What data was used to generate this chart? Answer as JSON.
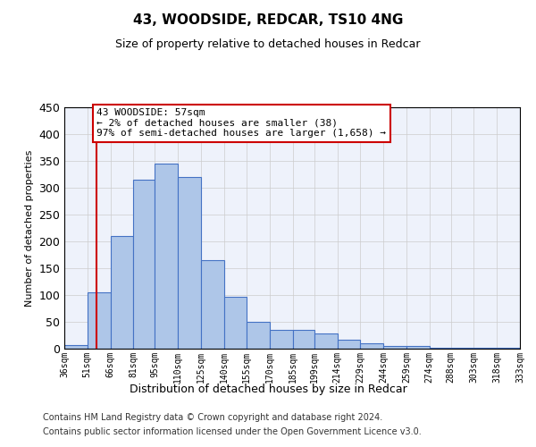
{
  "title": "43, WOODSIDE, REDCAR, TS10 4NG",
  "subtitle": "Size of property relative to detached houses in Redcar",
  "xlabel": "Distribution of detached houses by size in Redcar",
  "ylabel": "Number of detached properties",
  "footer_line1": "Contains HM Land Registry data © Crown copyright and database right 2024.",
  "footer_line2": "Contains public sector information licensed under the Open Government Licence v3.0.",
  "bar_left_edges": [
    36,
    51,
    66,
    81,
    95,
    110,
    125,
    140,
    155,
    170,
    185,
    199,
    214,
    229,
    244,
    259,
    274,
    288,
    303,
    318
  ],
  "bar_widths": [
    15,
    15,
    15,
    14,
    15,
    15,
    15,
    15,
    15,
    15,
    14,
    15,
    15,
    15,
    15,
    15,
    14,
    15,
    15,
    15
  ],
  "bar_heights": [
    7,
    105,
    210,
    315,
    345,
    320,
    165,
    97,
    50,
    35,
    35,
    28,
    17,
    10,
    5,
    5,
    2,
    2,
    1,
    1
  ],
  "bar_color": "#aec6e8",
  "bar_edge_color": "#4472c4",
  "grid_color": "#cccccc",
  "bg_color": "#eef2fb",
  "annotation_line1": "43 WOODSIDE: 57sqm",
  "annotation_line2": "← 2% of detached houses are smaller (38)",
  "annotation_line3": "97% of semi-detached houses are larger (1,658) →",
  "annotation_box_color": "#ffffff",
  "annotation_box_edge": "#cc0000",
  "vline_x": 57,
  "vline_color": "#cc0000",
  "ylim": [
    0,
    450
  ],
  "xlim": [
    36,
    333
  ],
  "tick_labels": [
    "36sqm",
    "51sqm",
    "66sqm",
    "81sqm",
    "95sqm",
    "110sqm",
    "125sqm",
    "140sqm",
    "155sqm",
    "170sqm",
    "185sqm",
    "199sqm",
    "214sqm",
    "229sqm",
    "244sqm",
    "259sqm",
    "274sqm",
    "288sqm",
    "303sqm",
    "318sqm",
    "333sqm"
  ],
  "tick_positions": [
    36,
    51,
    66,
    81,
    95,
    110,
    125,
    140,
    155,
    170,
    185,
    199,
    214,
    229,
    244,
    259,
    274,
    288,
    303,
    318,
    333
  ]
}
